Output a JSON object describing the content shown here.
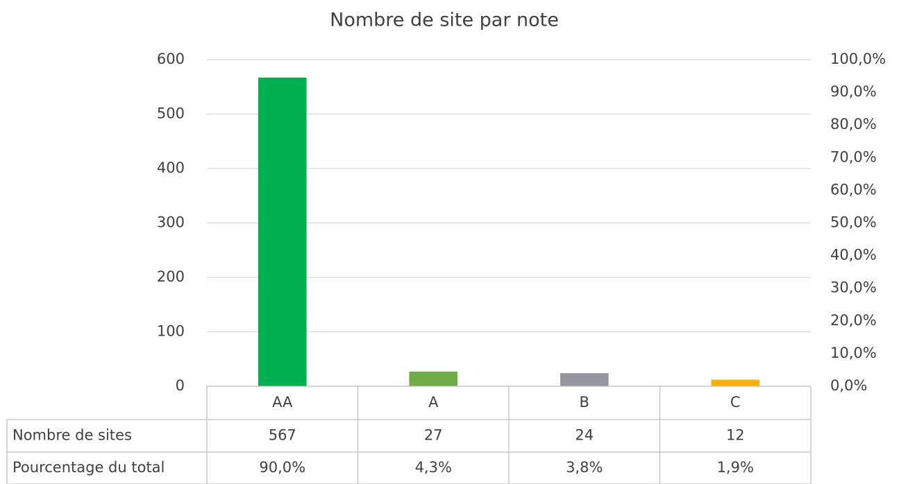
{
  "chart_data": {
    "type": "bar",
    "title": "Nombre de site par note",
    "categories": [
      "AA",
      "A",
      "B",
      "C"
    ],
    "series": [
      {
        "name": "Nombre de sites",
        "colors": [
          "#00b050",
          "#70ad47",
          "#9696a0",
          "#ffb000"
        ],
        "values": [
          567,
          27,
          24,
          12
        ]
      },
      {
        "name": "Pourcentage du total",
        "axis": "y2",
        "values": [
          90.0,
          4.3,
          3.8,
          1.9
        ],
        "value_labels": [
          "90,0%",
          "4,3%",
          "3,8%",
          "1,9%"
        ]
      }
    ],
    "ylim": [
      0,
      600
    ],
    "yticks": [
      0,
      100,
      200,
      300,
      400,
      500,
      600
    ],
    "y2lim": [
      0,
      100
    ],
    "y2ticks": [
      {
        "value": 0,
        "label": "0,0%"
      },
      {
        "value": 10,
        "label": "10,0%"
      },
      {
        "value": 20,
        "label": "20,0%"
      },
      {
        "value": 30,
        "label": "30,0%"
      },
      {
        "value": 40,
        "label": "40,0%"
      },
      {
        "value": 50,
        "label": "50,0%"
      },
      {
        "value": 60,
        "label": "60,0%"
      },
      {
        "value": 70,
        "label": "70,0%"
      },
      {
        "value": 80,
        "label": "80,0%"
      },
      {
        "value": 90,
        "label": "90,0%"
      },
      {
        "value": 100,
        "label": "100,0%"
      }
    ],
    "grid": true,
    "data_table": true
  }
}
